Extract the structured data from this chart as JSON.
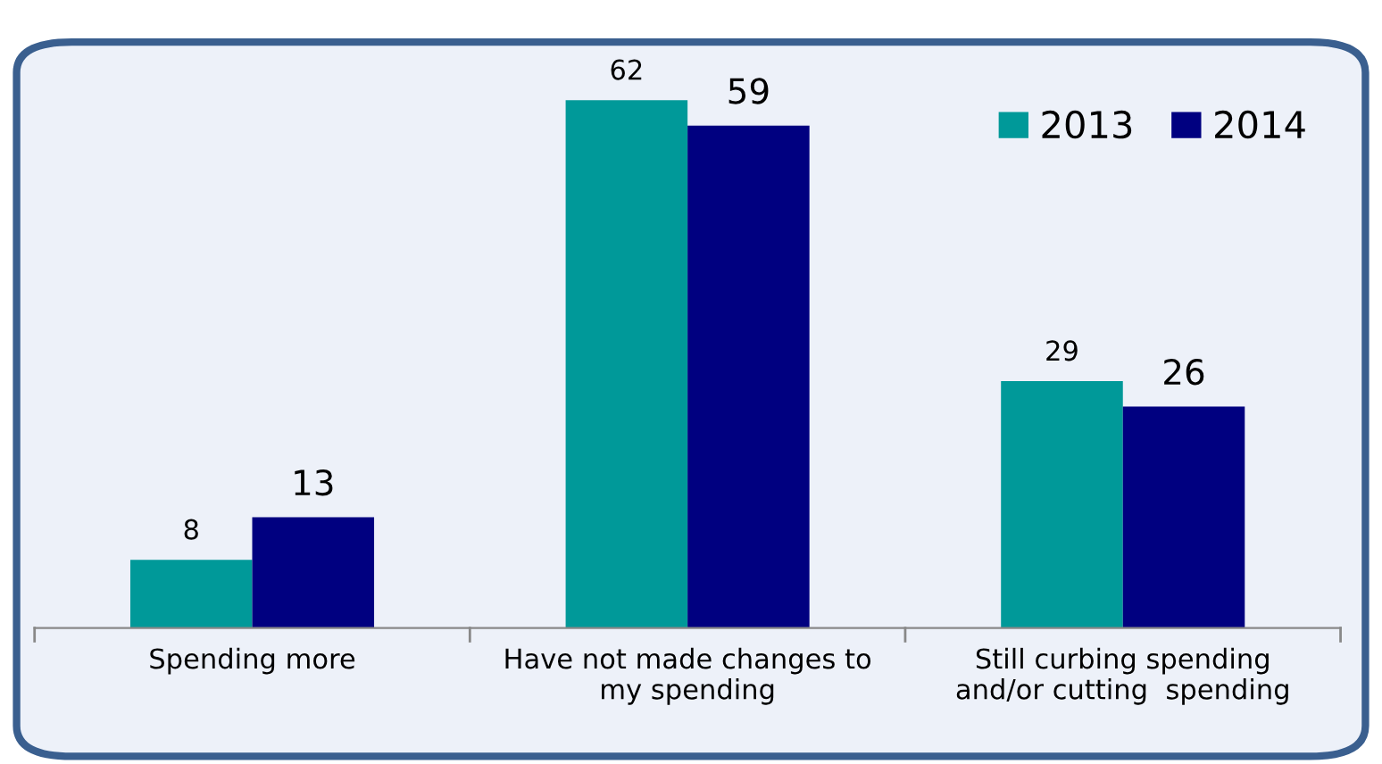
{
  "chart_data": {
    "type": "bar",
    "categories": [
      "Spending more",
      "Have not made changes to\nmy spending",
      "Still curbing spending\nand/or cutting  spending"
    ],
    "series": [
      {
        "name": "2013",
        "color": "#009999",
        "values": [
          8,
          62,
          29
        ]
      },
      {
        "name": "2014",
        "color": "#000080",
        "values": [
          13,
          59,
          26
        ]
      }
    ],
    "data_labels": true,
    "legend": "top right",
    "grid": false
  }
}
